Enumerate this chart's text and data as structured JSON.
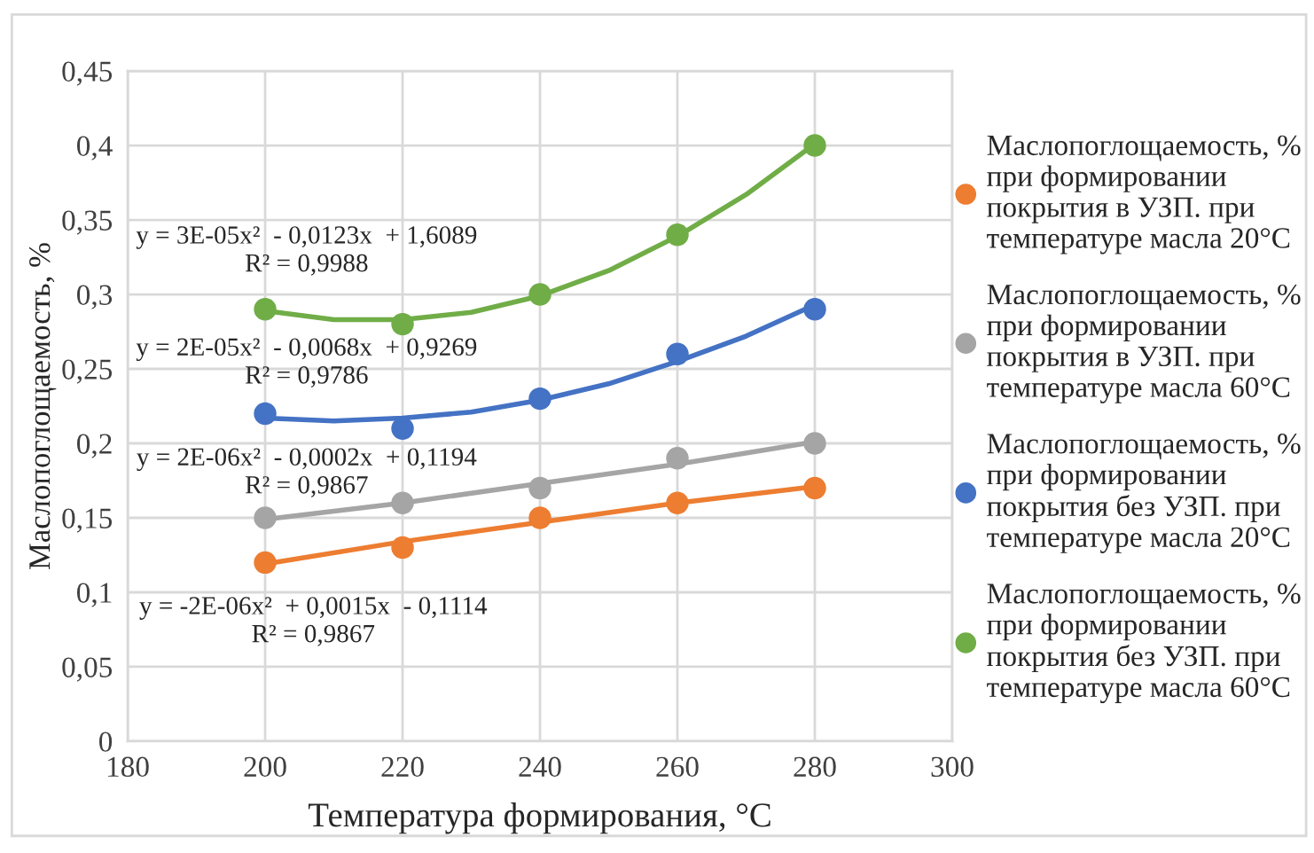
{
  "chart_data": {
    "type": "scatter",
    "xlabel": "Температура формирования, °C",
    "ylabel": "Маслопоглощаемость, %",
    "x": [
      200,
      220,
      240,
      260,
      280
    ],
    "xlim": [
      180,
      300
    ],
    "xticks": [
      180,
      200,
      220,
      240,
      260,
      280,
      300
    ],
    "ylim": [
      0,
      0.45
    ],
    "yticks": [
      0,
      {
        "value": 0.05,
        "label": "0,05"
      },
      {
        "value": 0.1,
        "label": "0,1"
      },
      {
        "value": 0.15,
        "label": "0,15"
      },
      {
        "value": 0.2,
        "label": "0,2"
      },
      {
        "value": 0.25,
        "label": "0,25"
      },
      {
        "value": 0.3,
        "label": "0,3"
      },
      {
        "value": 0.35,
        "label": "0,35"
      },
      {
        "value": 0.4,
        "label": "0,4"
      },
      {
        "value": 0.45,
        "label": "0,45"
      }
    ],
    "grid": true,
    "legend": "right",
    "marker": "circle",
    "series": [
      {
        "name": "Маслопоглощаемость, %\nпри формировании\nпокрытия в УЗП. при\nтемпературе масла 20°C",
        "color": "#ed7d31",
        "values": [
          0.12,
          0.13,
          0.15,
          0.16,
          0.17
        ]
      },
      {
        "name": "Маслопоглощаемость, %\nпри формировании\nпокрытия в УЗП. при\nтемпературе масла 60°C",
        "color": "#a5a5a5",
        "values": [
          0.15,
          0.16,
          0.17,
          0.19,
          0.2
        ]
      },
      {
        "name": "Маслопоглощаемость, %\nпри формировании\nпокрытия без УЗП. при\nтемпературе масла 20°C",
        "color": "#4472c4",
        "values": [
          0.22,
          0.21,
          0.23,
          0.26,
          0.29
        ]
      },
      {
        "name": "Маслопоглощаемость, %\nпри формировании\nпокрытия без УЗП. при\nтемпературе масла 60°C",
        "color": "#70ad47",
        "values": [
          0.29,
          0.28,
          0.3,
          0.34,
          0.4
        ]
      },
      {
        "type": "line",
        "marker": "none",
        "color": "#ed7d31",
        "x": [
          200,
          220,
          240,
          260,
          280
        ],
        "values": [
          0.119,
          0.134,
          0.147,
          0.16,
          0.171
        ]
      },
      {
        "type": "line",
        "marker": "none",
        "color": "#a5a5a5",
        "x": [
          200,
          220,
          240,
          260,
          280
        ],
        "values": [
          0.149,
          0.16,
          0.173,
          0.186,
          0.201
        ]
      },
      {
        "type": "line",
        "marker": "none",
        "color": "#4472c4",
        "x": [
          200,
          210,
          220,
          230,
          240,
          250,
          260,
          270,
          280
        ],
        "values": [
          0.217,
          0.215,
          0.217,
          0.221,
          0.229,
          0.24,
          0.255,
          0.272,
          0.293
        ]
      },
      {
        "type": "line",
        "marker": "none",
        "color": "#70ad47",
        "x": [
          200,
          210,
          220,
          230,
          240,
          250,
          260,
          270,
          280
        ],
        "values": [
          0.289,
          0.283,
          0.283,
          0.288,
          0.299,
          0.316,
          0.339,
          0.367,
          0.401
        ]
      }
    ],
    "annotations": [
      "y = 3E-05x²  - 0,0123x  + 1,6089\nR² = 0,9988",
      "y = 2E-05x²  - 0,0068x  + 0,9269\nR² = 0,9786",
      "y = 2E-06x²  - 0,0002x  + 0,1194\nR² = 0,9867",
      "y = -2E-06x²  + 0,0015x  - 0,1114\nR² = 0,9867"
    ]
  }
}
